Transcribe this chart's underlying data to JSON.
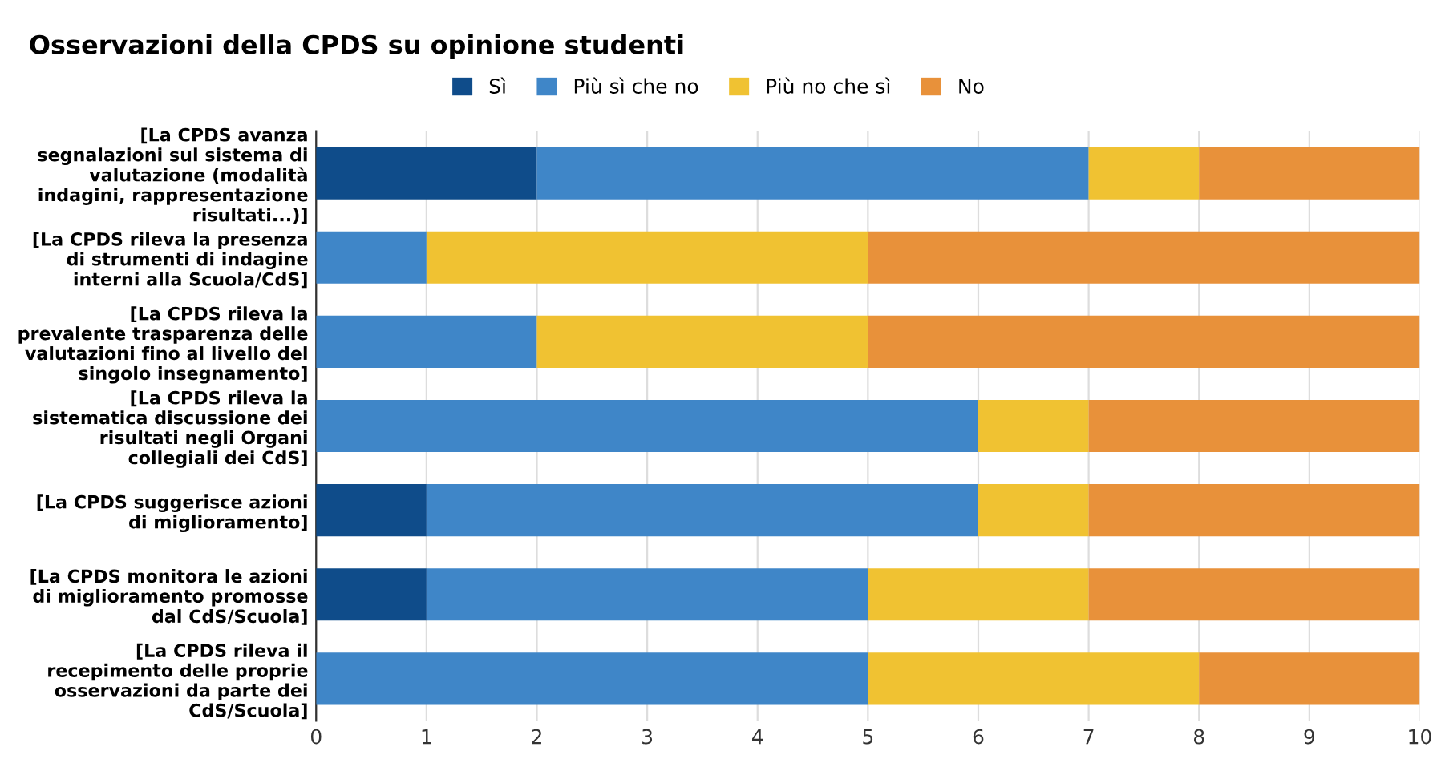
{
  "chart_data": {
    "type": "bar",
    "orientation": "horizontal",
    "stacked": true,
    "title": "Osservazioni della CPDS su opinione studenti",
    "categories": [
      "[La CPDS avanza\nsegnalazioni sul sistema di\nvalutazione (modalità\nindagini, rappresentazione\nrisultati...)]",
      "[La CPDS rileva la presenza\ndi strumenti di indagine\ninterni alla Scuola/CdS]",
      "[La CPDS rileva la\nprevalente trasparenza delle\nvalutazioni fino al livello del\nsingolo insegnamento]",
      "[La CPDS rileva la\nsistematica discussione dei\nrisultati negli Organi\ncollegiali dei CdS]",
      "[La CPDS suggerisce azioni\ndi miglioramento]",
      "[La CPDS monitora le azioni\ndi miglioramento promosse\ndal CdS/Scuola]",
      "[La CPDS rileva il\nrecepimento delle proprie\nosservazioni da parte dei\nCdS/Scuola]"
    ],
    "series": [
      {
        "name": "Sì",
        "color": "#0f4c8a",
        "values": [
          2,
          0,
          0,
          0,
          1,
          1,
          0
        ]
      },
      {
        "name": "Più sì che no",
        "color": "#3f86c8",
        "values": [
          5,
          1,
          2,
          6,
          5,
          4,
          5
        ]
      },
      {
        "name": "Più no che sì",
        "color": "#f0c232",
        "values": [
          1,
          4,
          3,
          1,
          1,
          2,
          3
        ]
      },
      {
        "name": "No",
        "color": "#e8913a",
        "values": [
          2,
          5,
          5,
          3,
          3,
          3,
          2
        ]
      }
    ],
    "xlim": [
      0,
      10
    ],
    "xticks": [
      0,
      1,
      2,
      3,
      4,
      5,
      6,
      7,
      8,
      9,
      10
    ],
    "grid": "x",
    "legend": "top"
  }
}
